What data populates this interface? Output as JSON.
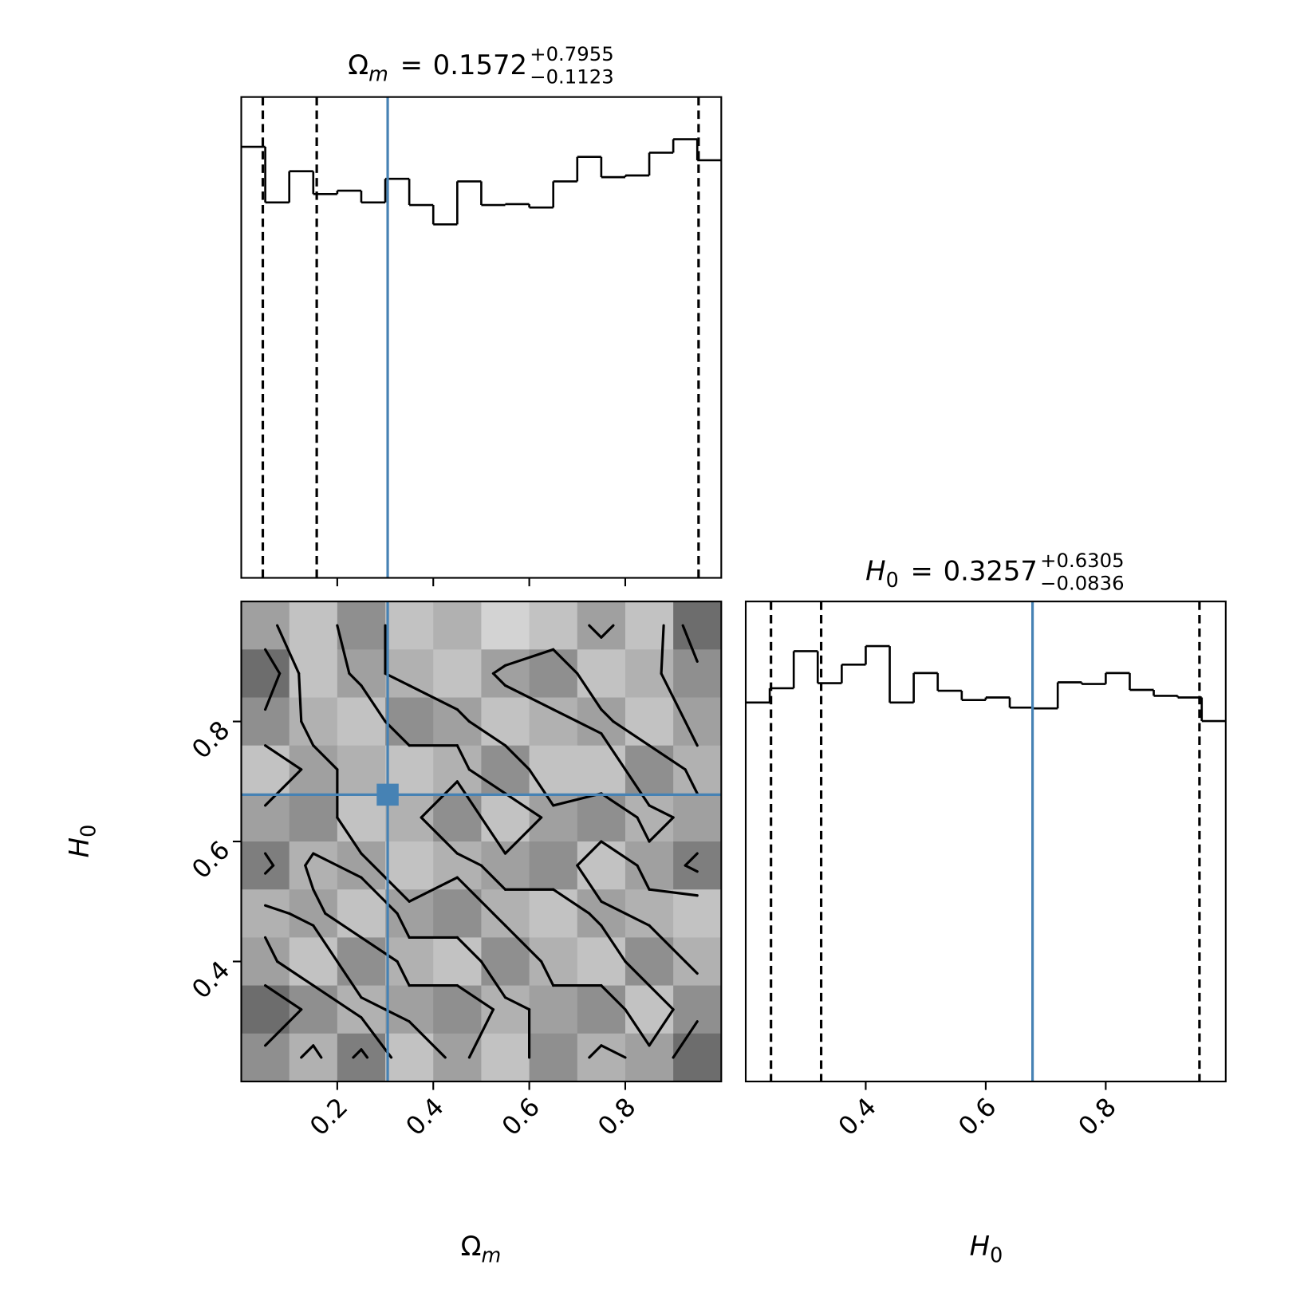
{
  "chart_data": [
    {
      "type": "histogram",
      "title": {
        "param": "Ω",
        "param_sub": "m",
        "eq": "=",
        "median": 0.1572,
        "plus": "+0.7955",
        "minus": "−0.1123"
      },
      "bins": [
        0,
        0.05,
        0.1,
        0.15,
        0.2,
        0.25,
        0.3,
        0.35,
        0.4,
        0.45,
        0.5,
        0.55,
        0.6,
        0.65,
        0.7,
        0.75,
        0.8,
        0.85,
        0.9,
        0.95,
        1.0
      ],
      "values": [
        511,
        445,
        482,
        455,
        459,
        445,
        473,
        442,
        419,
        470,
        442,
        443,
        439,
        470,
        499,
        475,
        477,
        504,
        520,
        495
      ],
      "xlim": [
        0,
        1
      ],
      "ylim": [
        0,
        570
      ],
      "xticks": [
        0.2,
        0.4,
        0.6,
        0.8
      ],
      "quantiles": [
        0.0449,
        0.1572,
        0.9527
      ],
      "truth": 0.305,
      "color": "#000000",
      "truth_color": "#4682b4"
    },
    {
      "type": "hist2d",
      "xlabel": {
        "param": "Ω",
        "param_sub": "m"
      },
      "ylabel": {
        "param": "H",
        "param_sub": "0"
      },
      "xlim": [
        0,
        1
      ],
      "ylim": [
        0.2,
        1.0
      ],
      "xticks": [
        0.2,
        0.4,
        0.6,
        0.8
      ],
      "yticks": [
        0.4,
        0.6,
        0.8
      ],
      "density": [
        [
          0.5,
          0.3,
          0.6,
          0.3,
          0.4,
          0.2,
          0.3,
          0.5,
          0.3,
          0.8
        ],
        [
          0.8,
          0.3,
          0.5,
          0.4,
          0.3,
          0.5,
          0.6,
          0.3,
          0.4,
          0.6
        ],
        [
          0.6,
          0.4,
          0.3,
          0.6,
          0.5,
          0.3,
          0.4,
          0.5,
          0.3,
          0.5
        ],
        [
          0.3,
          0.5,
          0.4,
          0.3,
          0.4,
          0.6,
          0.3,
          0.3,
          0.6,
          0.4
        ],
        [
          0.5,
          0.6,
          0.3,
          0.4,
          0.6,
          0.3,
          0.5,
          0.6,
          0.4,
          0.5
        ],
        [
          0.7,
          0.4,
          0.5,
          0.3,
          0.4,
          0.5,
          0.6,
          0.3,
          0.5,
          0.7
        ],
        [
          0.4,
          0.5,
          0.3,
          0.5,
          0.6,
          0.4,
          0.3,
          0.5,
          0.4,
          0.3
        ],
        [
          0.5,
          0.3,
          0.6,
          0.4,
          0.3,
          0.6,
          0.4,
          0.3,
          0.6,
          0.4
        ],
        [
          0.8,
          0.6,
          0.4,
          0.5,
          0.6,
          0.4,
          0.5,
          0.6,
          0.3,
          0.6
        ],
        [
          0.6,
          0.4,
          0.7,
          0.3,
          0.5,
          0.3,
          0.6,
          0.4,
          0.5,
          0.8
        ]
      ],
      "contour_levels": [
        0.45,
        0.65
      ],
      "truth": [
        0.305,
        0.678
      ],
      "truth_color": "#4682b4"
    },
    {
      "type": "histogram",
      "title": {
        "param": "H",
        "param_sub": "0",
        "eq": "=",
        "median": 0.3257,
        "plus": "+0.6305",
        "minus": "−0.0836"
      },
      "xlabel": {
        "param": "H",
        "param_sub": "0"
      },
      "bins": [
        0.2,
        0.24,
        0.28,
        0.32,
        0.36,
        0.4,
        0.44,
        0.48,
        0.52,
        0.56,
        0.6,
        0.64,
        0.68,
        0.72,
        0.76,
        0.8,
        0.84,
        0.88,
        0.92,
        0.96,
        1.0
      ],
      "values": [
        450,
        467,
        511,
        473,
        495,
        517,
        450,
        485,
        464,
        453,
        456,
        444,
        443,
        474,
        472,
        485,
        465,
        458,
        456,
        428
      ],
      "xlim": [
        0.2,
        1.0
      ],
      "ylim": [
        0,
        570
      ],
      "xticks": [
        0.4,
        0.6,
        0.8
      ],
      "quantiles": [
        0.2421,
        0.3257,
        0.9562
      ],
      "truth": 0.678,
      "color": "#000000",
      "truth_color": "#4682b4"
    }
  ]
}
